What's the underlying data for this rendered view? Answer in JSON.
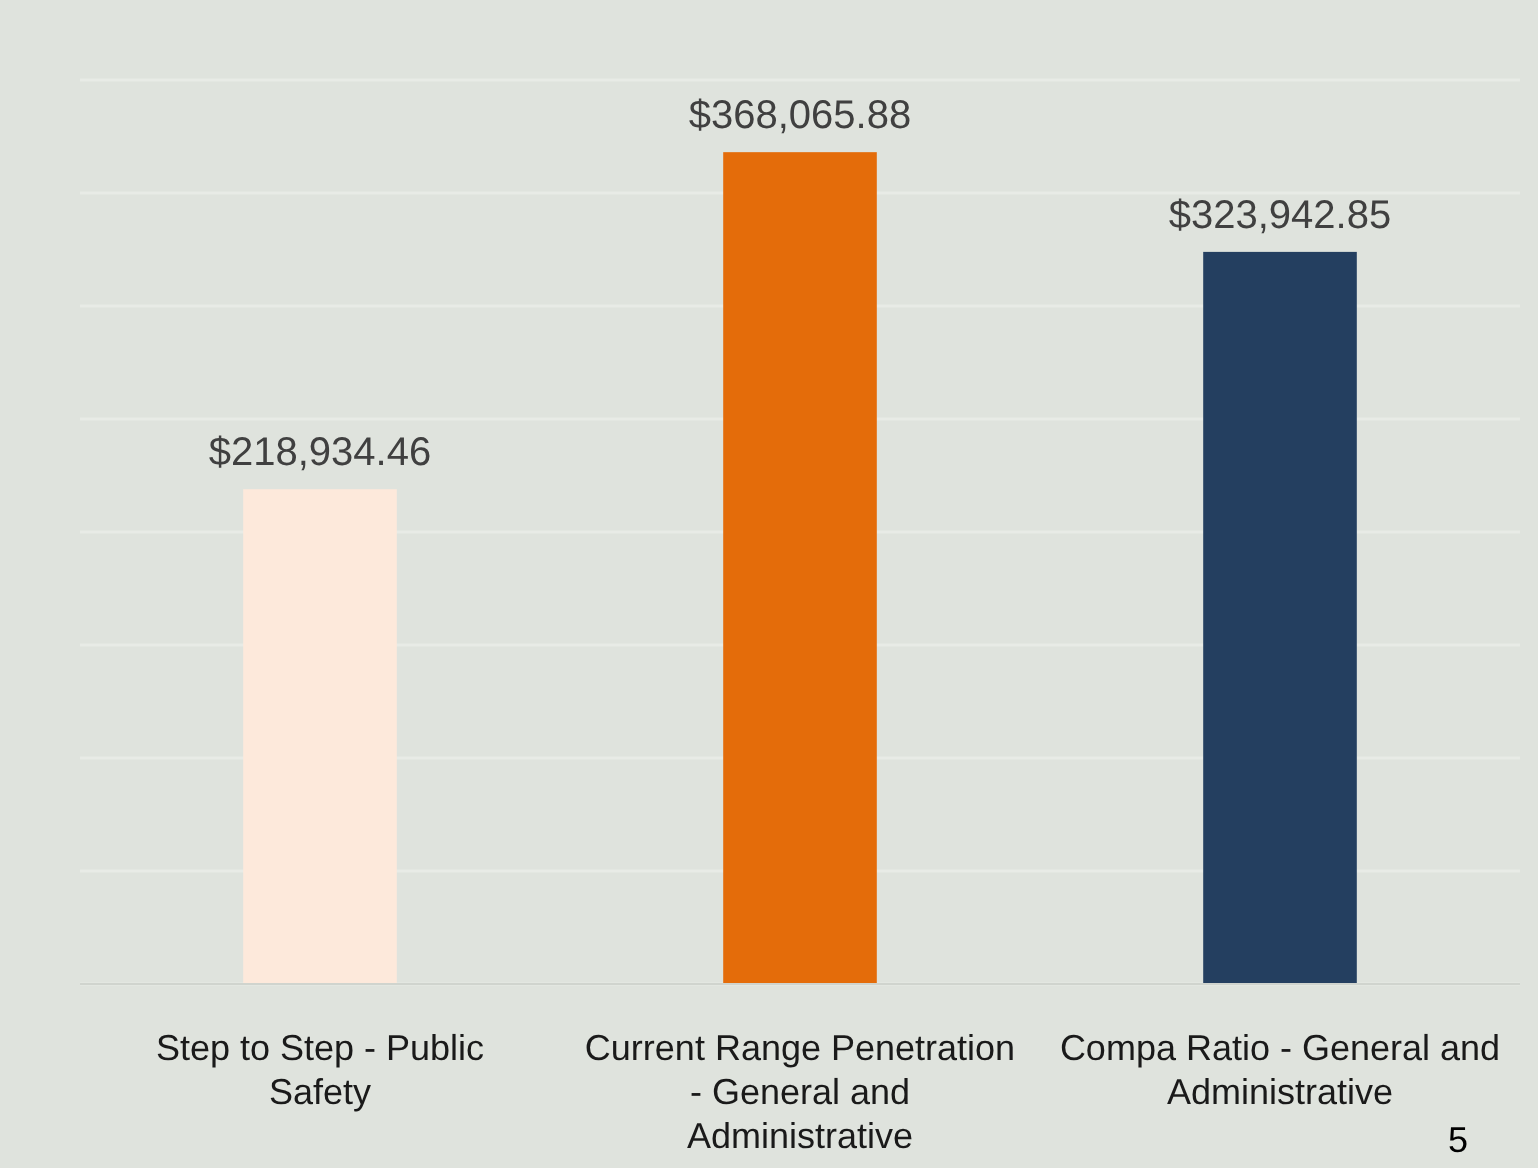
{
  "chart_data": {
    "type": "bar",
    "categories": [
      "Step to Step - Public Safety",
      "Current Range Penetration - General and Administrative",
      "Compa Ratio - General and Administrative"
    ],
    "values": [
      218934.46,
      368065.88,
      323942.85
    ],
    "colors": [
      "#fde9db",
      "#e46c0a",
      "#243f60"
    ],
    "value_labels": [
      "$218,934.46",
      "$368,065.88",
      "$323,942.85"
    ],
    "ylim": [
      0,
      400000
    ],
    "yticks": [
      {
        "value": 0,
        "label": null
      },
      {
        "value": 50000,
        "label": null
      },
      {
        "value": 100000,
        "label": null
      },
      {
        "value": 150000,
        "label": null
      },
      {
        "value": 200000,
        "label": null
      },
      {
        "value": 250000,
        "label": null
      },
      {
        "value": 300000,
        "label": null
      },
      {
        "value": 350000,
        "label": null
      },
      {
        "value": 400000,
        "label": null
      }
    ],
    "tick_labels": "x",
    "grid": "y",
    "annotations": [
      "5"
    ]
  }
}
